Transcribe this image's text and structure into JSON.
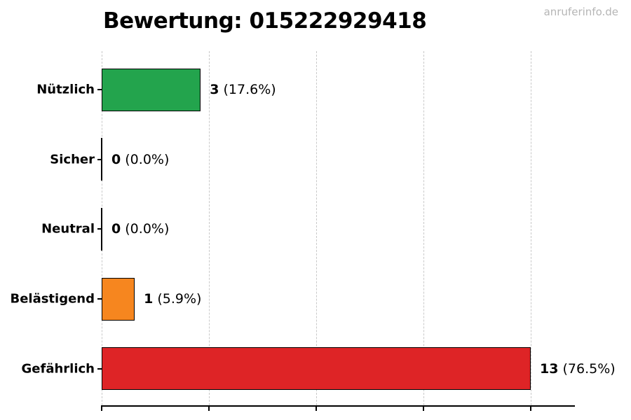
{
  "header": {
    "title": "Bewertung: 015222929418",
    "watermark": "anruferinfo.de"
  },
  "chart_data": {
    "type": "bar",
    "orientation": "horizontal",
    "title": "Bewertung: 015222929418",
    "categories": [
      "Nützlich",
      "Sicher",
      "Neutral",
      "Belästigend",
      "Gefährlich"
    ],
    "values": [
      3,
      0,
      0,
      1,
      13
    ],
    "percent_labels": [
      "17.6%",
      "0.0%",
      "0.0%",
      "5.9%",
      "76.5%"
    ],
    "value_label_format": "{count} ({percent})",
    "bar_colors": [
      "#23a44d",
      null,
      null,
      "#f6861f",
      "#de2426"
    ],
    "bar_edge_color": "#000000",
    "xlim": [
      0,
      13
    ],
    "x_ticks": [
      0,
      3.25,
      6.5,
      9.75,
      13
    ],
    "x_tick_labels": [],
    "ylabel": "",
    "xlabel": "",
    "grid": {
      "axis": "x",
      "style": "dashed",
      "color": "#c9c9c9"
    },
    "legend": "none",
    "background": "#ffffff"
  }
}
